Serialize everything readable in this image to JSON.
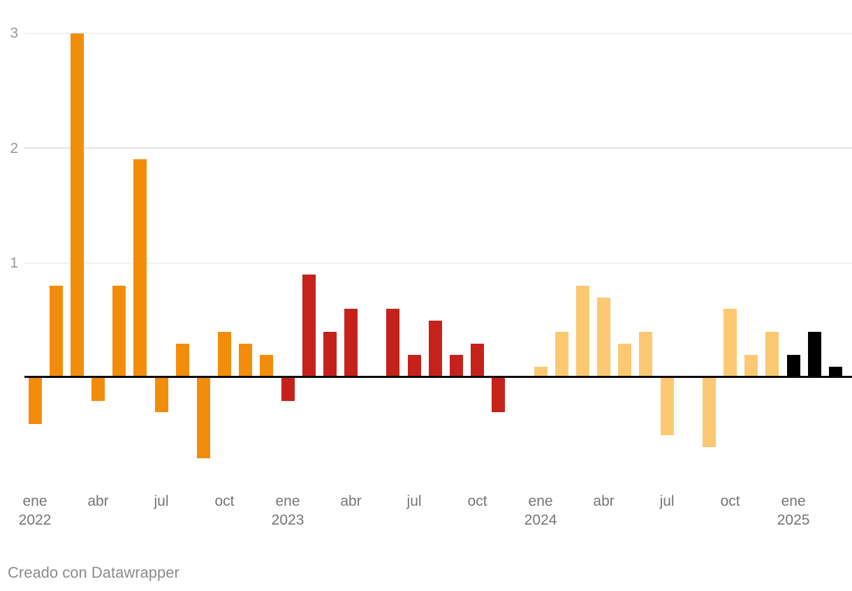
{
  "chart_data": {
    "type": "bar",
    "title": "",
    "xlabel": "",
    "ylabel": "",
    "grid": true,
    "legend": false,
    "ylim": [
      -0.8,
      3.0
    ],
    "y_ticks": [
      1,
      2,
      3
    ],
    "categories": [
      "ene 2022",
      "feb 2022",
      "mar 2022",
      "abr 2022",
      "may 2022",
      "jun 2022",
      "jul 2022",
      "ago 2022",
      "sep 2022",
      "oct 2022",
      "nov 2022",
      "dic 2022",
      "ene 2023",
      "feb 2023",
      "mar 2023",
      "abr 2023",
      "may 2023",
      "jun 2023",
      "jul 2023",
      "ago 2023",
      "sep 2023",
      "oct 2023",
      "nov 2023",
      "dic 2023",
      "ene 2024",
      "feb 2024",
      "mar 2024",
      "abr 2024",
      "may 2024",
      "jun 2024",
      "jul 2024",
      "ago 2024",
      "sep 2024",
      "oct 2024",
      "nov 2024",
      "dic 2024",
      "ene 2025",
      "feb 2025",
      "mar 2025"
    ],
    "series": [
      {
        "name": "2022",
        "color": "#F28D0C",
        "values": [
          -0.4,
          0.8,
          3.0,
          -0.2,
          0.8,
          1.9,
          -0.3,
          0.3,
          -0.7,
          0.4,
          0.3,
          0.2
        ]
      },
      {
        "name": "2023",
        "color": "#C5221C",
        "values": [
          -0.2,
          0.9,
          0.4,
          0.6,
          0.0,
          0.6,
          0.2,
          0.5,
          0.2,
          0.3,
          -0.3,
          0.0
        ]
      },
      {
        "name": "2024",
        "color": "#FCC972",
        "values": [
          0.1,
          0.4,
          0.8,
          0.7,
          0.3,
          0.4,
          -0.5,
          0.0,
          -0.6,
          0.6,
          0.2,
          0.4
        ]
      },
      {
        "name": "2025",
        "color": "#000000",
        "values": [
          0.2,
          0.4,
          0.1
        ]
      }
    ],
    "x_ticks": [
      {
        "month_index": 0,
        "label": "ene",
        "year": "2022"
      },
      {
        "month_index": 3,
        "label": "abr",
        "year": ""
      },
      {
        "month_index": 6,
        "label": "jul",
        "year": ""
      },
      {
        "month_index": 9,
        "label": "oct",
        "year": ""
      },
      {
        "month_index": 12,
        "label": "ene",
        "year": "2023"
      },
      {
        "month_index": 15,
        "label": "abr",
        "year": ""
      },
      {
        "month_index": 18,
        "label": "jul",
        "year": ""
      },
      {
        "month_index": 21,
        "label": "oct",
        "year": ""
      },
      {
        "month_index": 24,
        "label": "ene",
        "year": "2024"
      },
      {
        "month_index": 27,
        "label": "abr",
        "year": ""
      },
      {
        "month_index": 30,
        "label": "jul",
        "year": ""
      },
      {
        "month_index": 33,
        "label": "oct",
        "year": ""
      },
      {
        "month_index": 36,
        "label": "ene",
        "year": "2025"
      }
    ]
  },
  "footer": {
    "credit": "Creado con Datawrapper"
  }
}
